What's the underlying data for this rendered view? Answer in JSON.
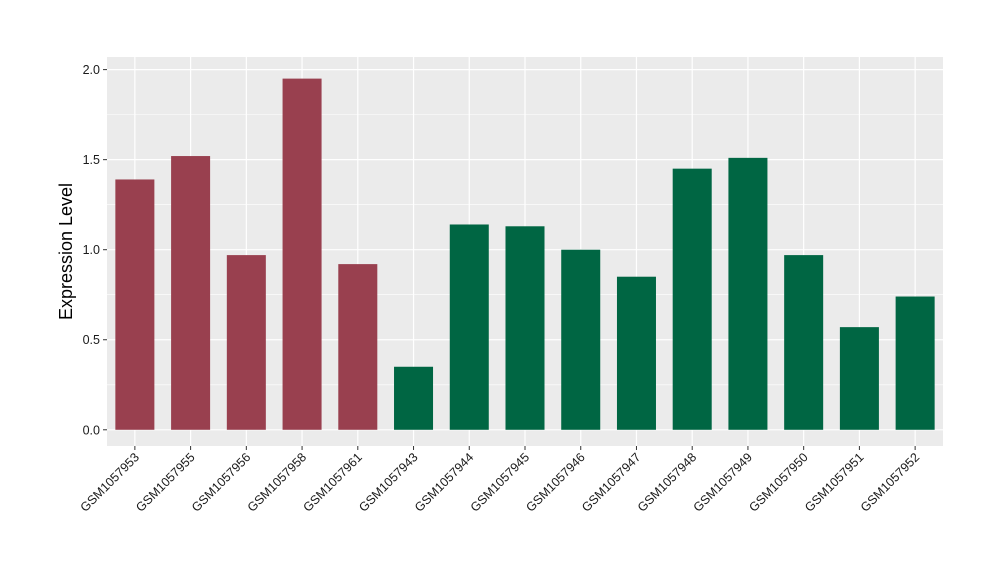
{
  "chart_data": {
    "type": "bar",
    "title": "",
    "xlabel": "",
    "ylabel": "Expression Level",
    "ylim": [
      -0.09,
      2.07
    ],
    "yticks": [
      0.0,
      0.5,
      1.0,
      1.5,
      2.0
    ],
    "ytick_labels": [
      "0.0",
      "0.5",
      "1.0",
      "1.5",
      "2.0"
    ],
    "grid": true,
    "legend": "none",
    "categories": [
      "GSM1057953",
      "GSM1057955",
      "GSM1057956",
      "GSM1057958",
      "GSM1057961",
      "GSM1057943",
      "GSM1057944",
      "GSM1057945",
      "GSM1057946",
      "GSM1057947",
      "GSM1057948",
      "GSM1057949",
      "GSM1057950",
      "GSM1057951",
      "GSM1057952"
    ],
    "values": [
      1.39,
      1.52,
      0.97,
      1.95,
      0.92,
      0.35,
      1.14,
      1.13,
      1.0,
      0.85,
      1.45,
      1.51,
      0.97,
      0.57,
      0.74
    ],
    "bar_colors": [
      "#99404f",
      "#99404f",
      "#99404f",
      "#99404f",
      "#99404f",
      "#006643",
      "#006643",
      "#006643",
      "#006643",
      "#006643",
      "#006643",
      "#006643",
      "#006643",
      "#006643",
      "#006643"
    ],
    "panel_background": "#ebebeb",
    "grid_color": "#ffffff"
  }
}
